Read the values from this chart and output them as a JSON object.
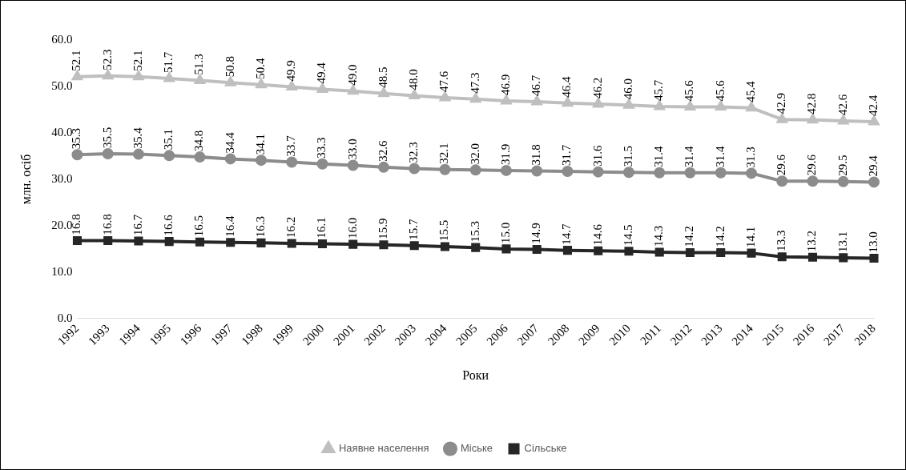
{
  "chart_data": {
    "type": "line",
    "xlabel": "Роки",
    "ylabel": "млн. осіб",
    "categories": [
      "1992",
      "1993",
      "1994",
      "1995",
      "1996",
      "1997",
      "1998",
      "1999",
      "2000",
      "2001",
      "2002",
      "2003",
      "2004",
      "2005",
      "2006",
      "2007",
      "2008",
      "2009",
      "2010",
      "2011",
      "2012",
      "2013",
      "2014",
      "2015",
      "2016",
      "2017",
      "2018"
    ],
    "series": [
      {
        "name": "Наявне населення",
        "color": "#bfbfbf",
        "marker": "triangle",
        "values": [
          52.1,
          52.3,
          52.1,
          51.7,
          51.3,
          50.8,
          50.4,
          49.9,
          49.4,
          49.0,
          48.5,
          48.0,
          47.6,
          47.3,
          46.9,
          46.7,
          46.4,
          46.2,
          46.0,
          45.7,
          45.6,
          45.6,
          45.4,
          42.9,
          42.8,
          42.6,
          42.4
        ],
        "value_labels": [
          "52.1",
          "52.3",
          "52.1",
          "51.7",
          "51.3",
          "50.8",
          "50.4",
          "49.9",
          "49.4",
          "49.0",
          "48.5",
          "48.0",
          "47.6",
          "47.3",
          "46.9",
          "46.7",
          "46.4",
          "46.2",
          "46.0",
          "45.7",
          "45.6",
          "45.6",
          "45.4",
          "42.9",
          "42.8",
          "42.6",
          "42.4"
        ]
      },
      {
        "name": "Міське",
        "color": "#8c8c8c",
        "marker": "circle",
        "values": [
          35.3,
          35.5,
          35.4,
          35.1,
          34.8,
          34.4,
          34.1,
          33.7,
          33.3,
          33.0,
          32.6,
          32.3,
          32.1,
          32.0,
          31.9,
          31.8,
          31.7,
          31.6,
          31.5,
          31.4,
          31.4,
          31.4,
          31.3,
          29.6,
          29.6,
          29.5,
          29.4
        ],
        "value_labels": [
          "35.3",
          "35.5",
          "35.4",
          "35.1",
          "34.8",
          "34.4",
          "34.1",
          "33.7",
          "33.3",
          "33.0",
          "32.6",
          "32.3",
          "32.1",
          "32.0",
          "31.9",
          "31.8",
          "31.7",
          "31.6",
          "31.5",
          "31.4",
          "31.4",
          "31.4",
          "31.3",
          "29.6",
          "29.6",
          "29.5",
          "29.4"
        ]
      },
      {
        "name": "Сільське",
        "color": "#262626",
        "marker": "square",
        "values": [
          16.8,
          16.8,
          16.7,
          16.6,
          16.5,
          16.4,
          16.3,
          16.2,
          16.1,
          16.0,
          15.9,
          15.7,
          15.5,
          15.3,
          15.0,
          14.9,
          14.7,
          14.6,
          14.5,
          14.3,
          14.2,
          14.2,
          14.1,
          13.3,
          13.2,
          13.1,
          13.0
        ],
        "value_labels": [
          "16.8",
          "16.8",
          "16.7",
          "16.6",
          "16.5",
          "16.4",
          "16.3",
          "16.2",
          "16.1",
          "16.0",
          "15.9",
          "15.7",
          "15.5",
          "15.3",
          "15.0",
          "14.9",
          "14.7",
          "14.6",
          "14.5",
          "14.3",
          "14.2",
          "14.2",
          "14.1",
          "13.3",
          "13.2",
          "13.1",
          "13.0"
        ]
      }
    ],
    "ylim": [
      0,
      60
    ],
    "yticks": [
      {
        "value": 0,
        "label": "0.0"
      },
      {
        "value": 10,
        "label": "10.0"
      },
      {
        "value": 20,
        "label": "20.0"
      },
      {
        "value": 30,
        "label": "30.0"
      },
      {
        "value": 40,
        "label": "40.0"
      },
      {
        "value": 50,
        "label": "50.0"
      },
      {
        "value": 60,
        "label": "60.0"
      }
    ],
    "grid": false,
    "legend": "bottom"
  }
}
